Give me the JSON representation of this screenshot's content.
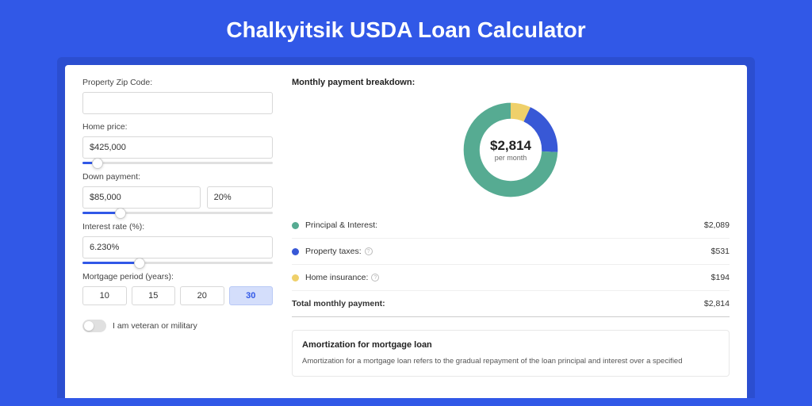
{
  "page": {
    "title": "Chalkyitsik USDA Loan Calculator",
    "colors": {
      "page_bg": "#3158e7",
      "outer_card_bg": "#2b4ed0",
      "inner_card_bg": "#ffffff",
      "accent": "#3158e7"
    }
  },
  "form": {
    "zip_label": "Property Zip Code:",
    "zip_value": "",
    "home_price_label": "Home price:",
    "home_price_value": "$425,000",
    "home_price_slider_pct": 8,
    "down_payment_label": "Down payment:",
    "down_payment_value": "$85,000",
    "down_payment_pct_value": "20%",
    "down_payment_slider_pct": 20,
    "interest_label": "Interest rate (%):",
    "interest_value": "6.230%",
    "interest_slider_pct": 30,
    "period_label": "Mortgage period (years):",
    "period_options": [
      "10",
      "15",
      "20",
      "30"
    ],
    "period_selected_index": 3,
    "veteran_label": "I am veteran or military",
    "veteran_on": false
  },
  "breakdown": {
    "title": "Monthly payment breakdown:",
    "donut": {
      "amount": "$2,814",
      "sub": "per month",
      "ring_width": 20,
      "segments": [
        {
          "name": "principal_interest",
          "value": 2089,
          "color": "#56ab92"
        },
        {
          "name": "property_taxes",
          "value": 531,
          "color": "#3858d6"
        },
        {
          "name": "home_insurance",
          "value": 194,
          "color": "#efd06a"
        }
      ]
    },
    "rows": [
      {
        "label": "Principal & Interest:",
        "value": "$2,089",
        "color": "#56ab92",
        "info": false
      },
      {
        "label": "Property taxes:",
        "value": "$531",
        "color": "#3858d6",
        "info": true
      },
      {
        "label": "Home insurance:",
        "value": "$194",
        "color": "#efd06a",
        "info": true
      }
    ],
    "total": {
      "label": "Total monthly payment:",
      "value": "$2,814"
    }
  },
  "amort": {
    "title": "Amortization for mortgage loan",
    "text": "Amortization for a mortgage loan refers to the gradual repayment of the loan principal and interest over a specified"
  }
}
